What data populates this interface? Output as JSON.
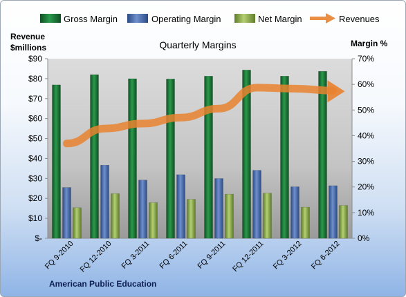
{
  "legend": [
    {
      "label": "Gross Margin",
      "icon": "bar-swatch"
    },
    {
      "label": "Operating Margin",
      "icon": "bar-swatch"
    },
    {
      "label": "Net Margin",
      "icon": "bar-swatch"
    },
    {
      "label": "Revenues",
      "icon": "arrow-swatch"
    }
  ],
  "colors": {
    "gross": "#1e7a3c",
    "operating": "#4468a8",
    "net": "#8aab4a",
    "revenues": "#e8822f"
  },
  "chart_data": {
    "type": "bar",
    "title": "Quarterly Margins",
    "company": "American Public Education",
    "ylabel_left": [
      "Revenue",
      "$millions"
    ],
    "ylabel_right": "Margin %",
    "categories": [
      "FQ 9-2010",
      "FQ 12-2010",
      "FQ 3-2011",
      "FQ 6-2011",
      "FQ 9-2011",
      "FQ 12-2011",
      "FQ 3-2012",
      "FQ 6-2012"
    ],
    "left_axis": {
      "range": [
        0,
        90
      ],
      "ticks": [
        "$-",
        "$10",
        "$20",
        "$30",
        "$40",
        "$50",
        "$60",
        "$70",
        "$80",
        "$90"
      ]
    },
    "right_axis": {
      "range": [
        0,
        70
      ],
      "ticks": [
        "0%",
        "10%",
        "20%",
        "30%",
        "40%",
        "50%",
        "60%",
        "70%"
      ]
    },
    "series": [
      {
        "name": "Gross Margin",
        "axis": "right",
        "kind": "bar",
        "values": [
          59.8,
          63.8,
          62.2,
          62.1,
          63.2,
          65.6,
          63.2,
          65.1
        ]
      },
      {
        "name": "Operating Margin",
        "axis": "right",
        "kind": "bar",
        "values": [
          19.8,
          28.5,
          22.7,
          24.8,
          23.3,
          26.5,
          20.1,
          20.5
        ]
      },
      {
        "name": "Net Margin",
        "axis": "right",
        "kind": "bar",
        "values": [
          11.9,
          17.4,
          13.9,
          15.2,
          17.2,
          17.6,
          12.1,
          12.8
        ]
      },
      {
        "name": "Revenues",
        "axis": "left",
        "kind": "line",
        "values": [
          47.5,
          55,
          57.5,
          60.5,
          65,
          75.5,
          75,
          74
        ]
      }
    ],
    "grid": false,
    "legend_position": "top"
  }
}
